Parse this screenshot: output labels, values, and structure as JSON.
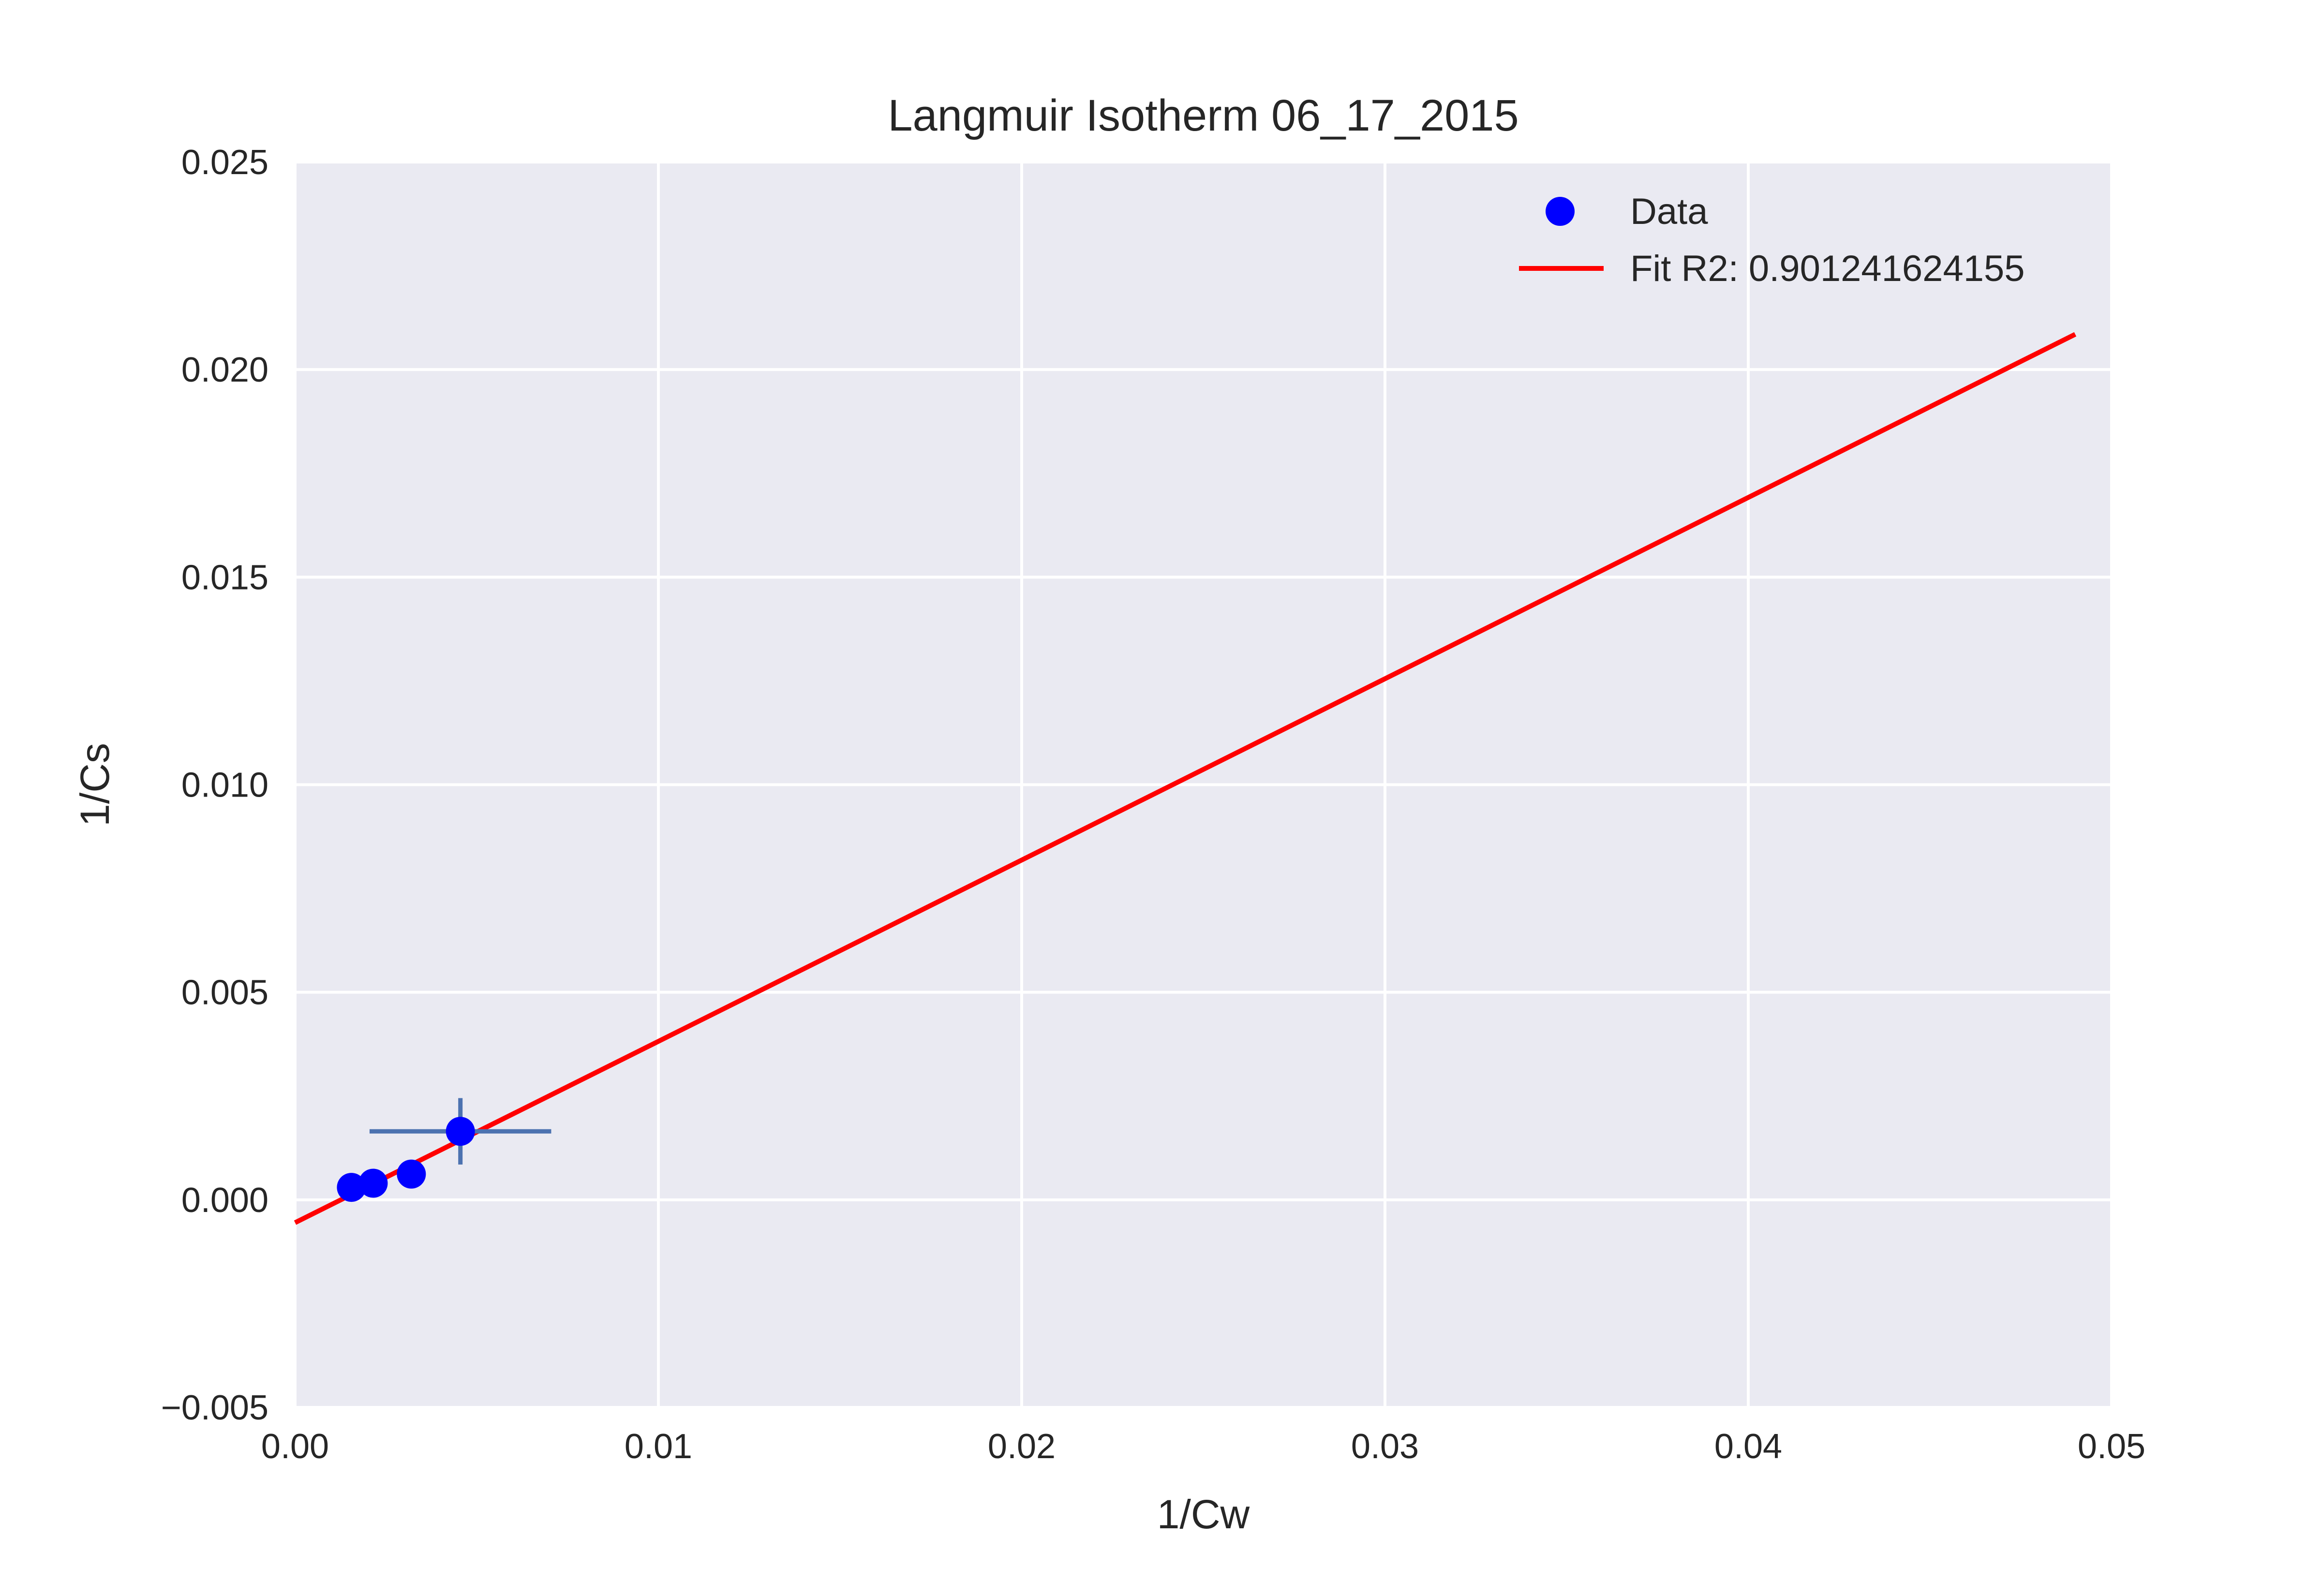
{
  "chart_data": {
    "type": "scatter",
    "title": "Langmuir Isotherm 06_17_2015",
    "xlabel": "1/Cw",
    "ylabel": "1/Cs",
    "xlim": [
      0.0,
      0.05
    ],
    "ylim": [
      -0.005,
      0.025
    ],
    "x_ticks": [
      0.0,
      0.01,
      0.02,
      0.03,
      0.04,
      0.05
    ],
    "x_tick_labels": [
      "0.00",
      "0.01",
      "0.02",
      "0.03",
      "0.04",
      "0.05"
    ],
    "y_ticks": [
      -0.005,
      0.0,
      0.005,
      0.01,
      0.015,
      0.02,
      0.025
    ],
    "y_tick_labels": [
      "−0.005",
      "0.000",
      "0.005",
      "0.010",
      "0.015",
      "0.020",
      "0.025"
    ],
    "grid": true,
    "legend_position": "top-right",
    "series": [
      {
        "name": "Data",
        "kind": "scatter",
        "color": "#0000ff",
        "points": [
          {
            "x": 0.00155,
            "y": 0.0003
          },
          {
            "x": 0.00215,
            "y": 0.0004
          },
          {
            "x": 0.0032,
            "y": 0.00062
          },
          {
            "x": 0.00455,
            "y": 0.00165
          }
        ]
      },
      {
        "name": "Fit R2: 0.901241624155",
        "kind": "line",
        "color": "#ff0000",
        "x": [
          0.0,
          0.049
        ],
        "y": [
          -0.00055,
          0.02085
        ]
      }
    ],
    "error_bars": {
      "color": "#4c72b0",
      "items": [
        {
          "x": 0.00455,
          "y": 0.00165,
          "xerr": 0.0025,
          "yerr": 0.0008
        }
      ]
    },
    "colors": {
      "plot_background": "#eaeaf2",
      "grid": "#ffffff",
      "text": "#262626"
    }
  }
}
